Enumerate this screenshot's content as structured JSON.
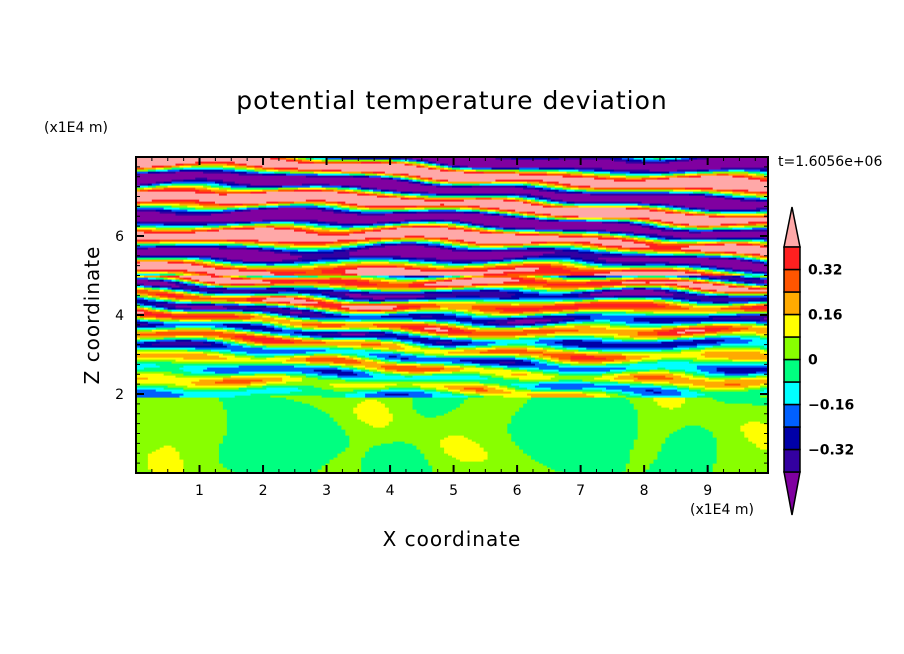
{
  "chart_data": {
    "type": "heatmap",
    "title": "potential temperature deviation",
    "xlabel": "X coordinate",
    "ylabel": "Z coordinate",
    "x_unit": "(x1E4 m)",
    "y_unit": "(x1E4 m)",
    "time_label": "t=1.6056e+06",
    "xlim": [
      0,
      9.95
    ],
    "ylim": [
      0,
      8
    ],
    "x_ticks": [
      "1",
      "2",
      "3",
      "4",
      "5",
      "6",
      "7",
      "8",
      "9"
    ],
    "y_ticks": [
      "2",
      "4",
      "6"
    ],
    "x_tick_values": [
      1,
      2,
      3,
      4,
      5,
      6,
      7,
      8,
      9
    ],
    "y_tick_values": [
      2,
      4,
      6
    ],
    "colorbar": {
      "levels": [
        -0.4,
        -0.32,
        -0.24,
        -0.16,
        -0.08,
        0,
        0.08,
        0.16,
        0.24,
        0.32,
        0.4
      ],
      "colors": [
        "#8000a0",
        "#3300a0",
        "#0000a8",
        "#0060ff",
        "#00ffff",
        "#00ff80",
        "#88ff00",
        "#ffff00",
        "#ffaa00",
        "#ff5500",
        "#ff2020",
        "#ffa8a8"
      ],
      "tick_labels": [
        "0.32",
        "0.16",
        "0",
        "-0.16",
        "-0.32"
      ],
      "tick_values": [
        0.32,
        0.16,
        0,
        -0.16,
        -0.32
      ],
      "extend": "both"
    },
    "field_description_regions": {
      "boundary_layer_top_z": 1.9
    }
  }
}
